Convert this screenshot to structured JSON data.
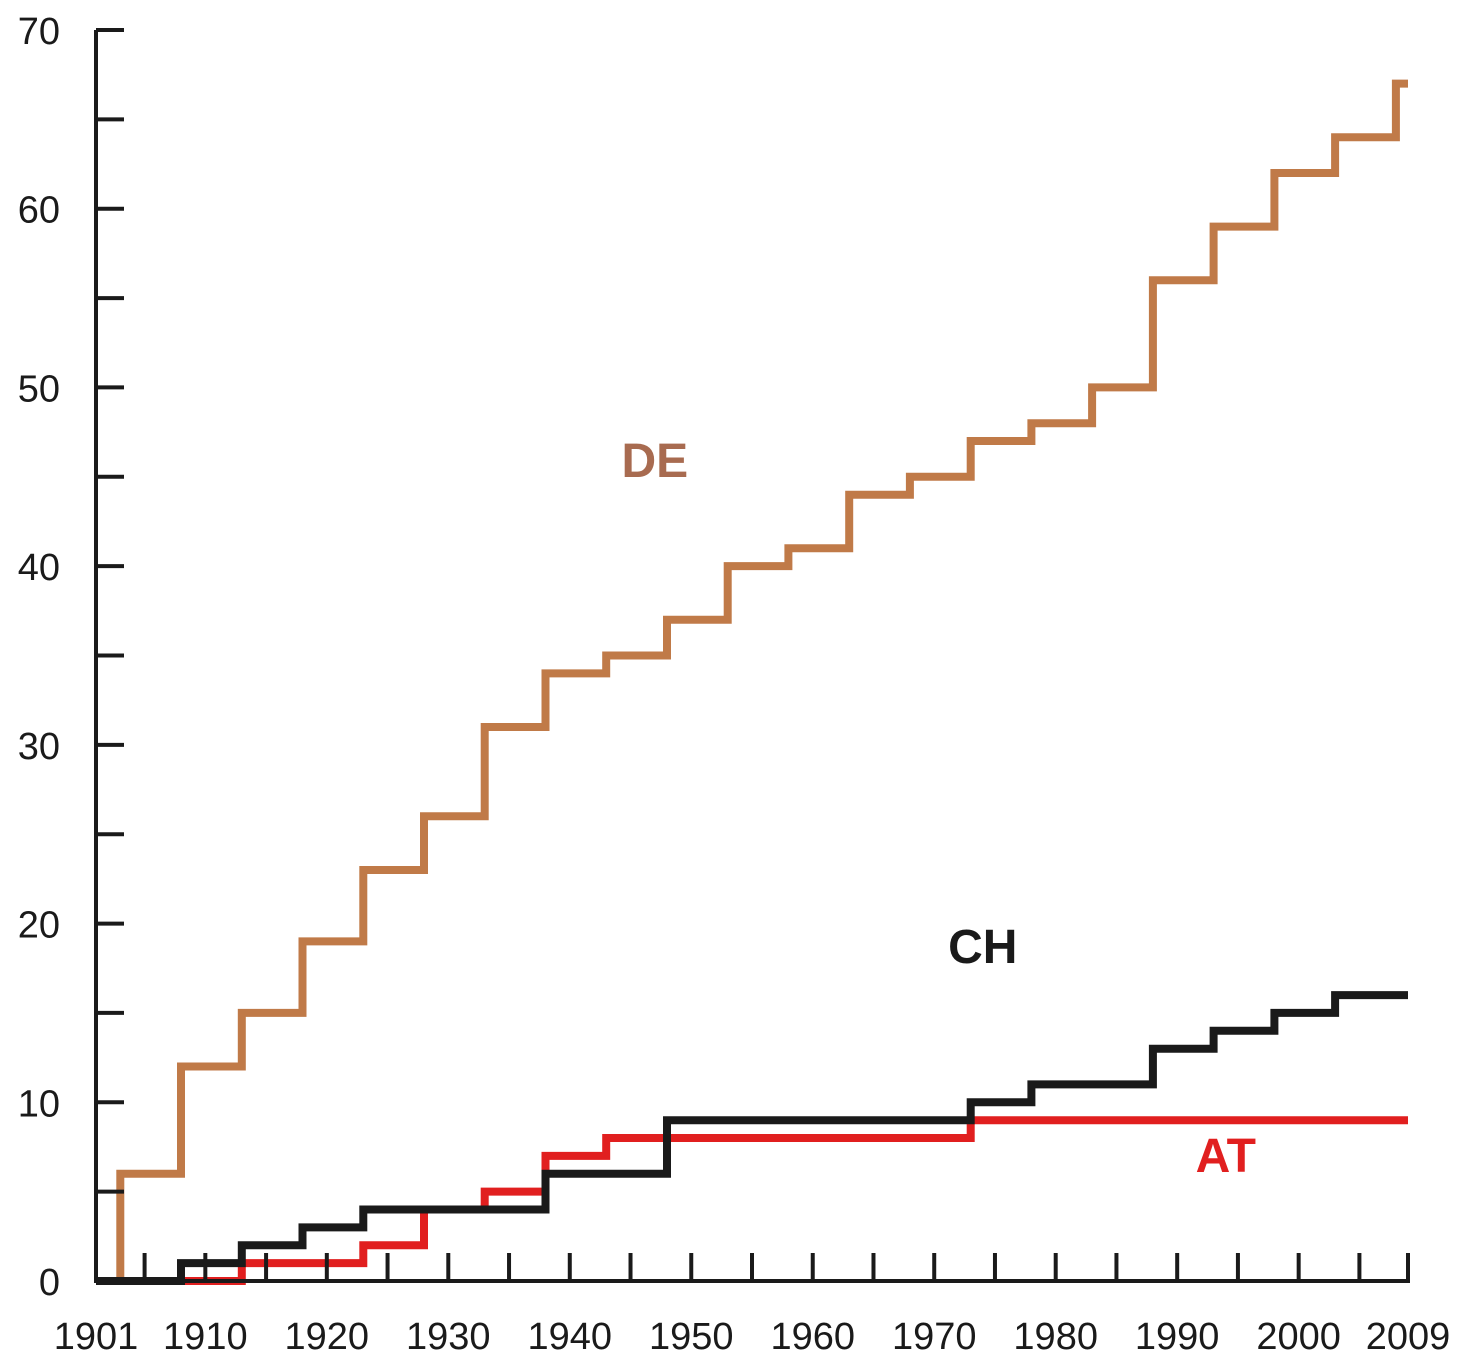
{
  "chart_data": {
    "type": "line",
    "step": true,
    "title": "",
    "xlabel": "",
    "ylabel": "",
    "xlim": [
      1901,
      2009
    ],
    "ylim": [
      0,
      70
    ],
    "grid": false,
    "legend": "none",
    "x_ticks": [
      1901,
      1910,
      1920,
      1930,
      1940,
      1950,
      1960,
      1970,
      1980,
      1990,
      2000,
      2009
    ],
    "x_tick_labels": [
      "1901",
      "1910",
      "1920",
      "1930",
      "1940",
      "1950",
      "1960",
      "1970",
      "1980",
      "1990",
      "2000",
      "2009"
    ],
    "x_minor_ticks": [
      1905,
      1915,
      1925,
      1935,
      1945,
      1955,
      1965,
      1975,
      1985,
      1995,
      2005
    ],
    "y_ticks": [
      0,
      10,
      20,
      30,
      40,
      50,
      60,
      70
    ],
    "y_tick_labels": [
      "0",
      "10",
      "20",
      "30",
      "40",
      "50",
      "60",
      "70"
    ],
    "y_minor_ticks": [
      5,
      15,
      25,
      35,
      45,
      55,
      65
    ],
    "series": [
      {
        "name": "DE",
        "color": "#c07a48",
        "label_color": "#a86b50",
        "label_at": [
          1947,
          45
        ],
        "x": [
          1901,
          1903,
          1908,
          1913,
          1918,
          1923,
          1928,
          1933,
          1938,
          1943,
          1948,
          1953,
          1958,
          1963,
          1968,
          1973,
          1978,
          1983,
          1988,
          1993,
          1998,
          2003,
          2008,
          2009
        ],
        "y": [
          0,
          6,
          12,
          15,
          19,
          23,
          26,
          31,
          34,
          35,
          37,
          40,
          41,
          44,
          45,
          47,
          48,
          50,
          56,
          59,
          62,
          64,
          67,
          67
        ]
      },
      {
        "name": "CH",
        "color": "#1a1a1a",
        "label_color": "#1a1a1a",
        "label_at": [
          1974,
          17.8
        ],
        "x": [
          1901,
          1908,
          1913,
          1918,
          1923,
          1928,
          1933,
          1938,
          1943,
          1948,
          1953,
          1958,
          1963,
          1968,
          1973,
          1978,
          1983,
          1988,
          1993,
          1998,
          2003,
          2009
        ],
        "y": [
          0,
          1,
          2,
          3,
          4,
          4,
          4,
          6,
          6,
          9,
          9,
          9,
          9,
          9,
          10,
          11,
          11,
          13,
          14,
          15,
          16,
          16
        ]
      },
      {
        "name": "AT",
        "color": "#e11f1f",
        "label_color": "#e11f1f",
        "label_at": [
          1994,
          6.1
        ],
        "x": [
          1901,
          1908,
          1913,
          1918,
          1923,
          1928,
          1933,
          1938,
          1943,
          1948,
          1953,
          1958,
          1963,
          1968,
          1973,
          2009
        ],
        "y": [
          0,
          0,
          1,
          1,
          2,
          4,
          5,
          7,
          8,
          8,
          8,
          8,
          8,
          8,
          9,
          9
        ]
      }
    ]
  }
}
